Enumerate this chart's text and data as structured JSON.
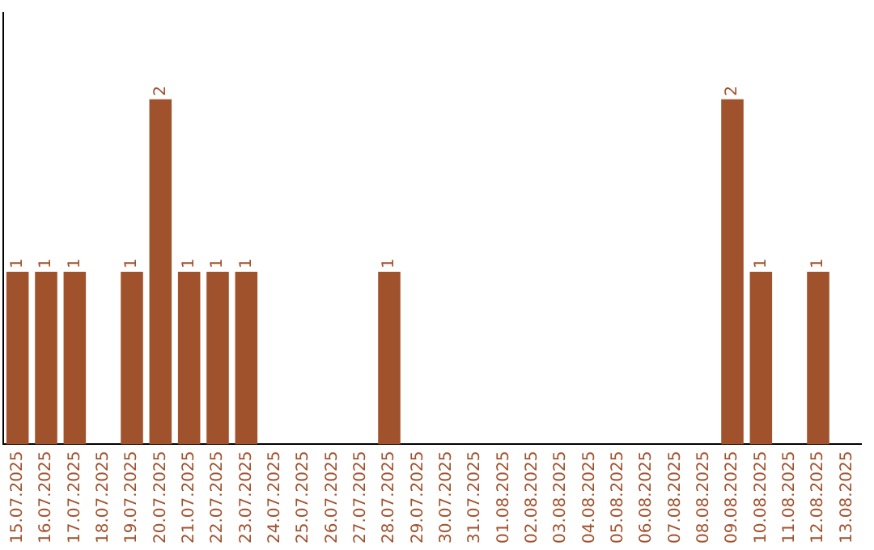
{
  "chart_data": {
    "type": "bar",
    "categories": [
      "15.07.2025",
      "16.07.2025",
      "17.07.2025",
      "18.07.2025",
      "19.07.2025",
      "20.07.2025",
      "21.07.2025",
      "22.07.2025",
      "23.07.2025",
      "24.07.2025",
      "25.07.2025",
      "26.07.2025",
      "27.07.2025",
      "28.07.2025",
      "29.07.2025",
      "30.07.2025",
      "31.07.2025",
      "01.08.2025",
      "02.08.2025",
      "03.08.2025",
      "04.08.2025",
      "05.08.2025",
      "06.08.2025",
      "07.08.2025",
      "08.08.2025",
      "09.08.2025",
      "10.08.2025",
      "11.08.2025",
      "12.08.2025",
      "13.08.2025"
    ],
    "values": [
      1,
      1,
      1,
      0,
      1,
      2,
      1,
      1,
      1,
      0,
      0,
      0,
      0,
      1,
      0,
      0,
      0,
      0,
      0,
      0,
      0,
      0,
      0,
      0,
      0,
      2,
      1,
      0,
      1,
      0
    ],
    "value_labels": [
      "1",
      "1",
      "1",
      null,
      "1",
      "2",
      "1",
      "1",
      "1",
      null,
      null,
      null,
      null,
      "1",
      null,
      null,
      null,
      null,
      null,
      null,
      null,
      null,
      null,
      null,
      null,
      "2",
      "1",
      null,
      "1",
      null
    ],
    "color": "#a0522d",
    "grid": false,
    "legend": false,
    "tick_labels": "x"
  }
}
